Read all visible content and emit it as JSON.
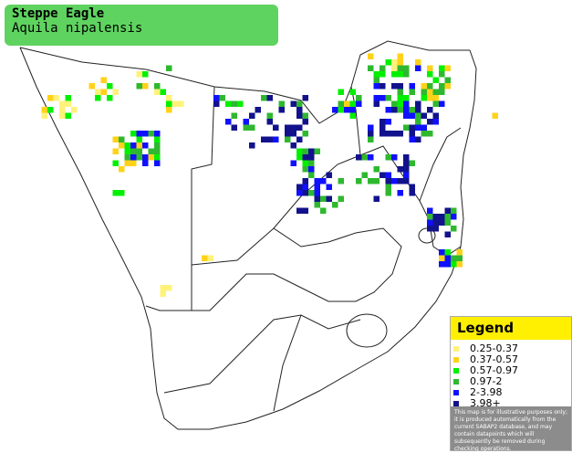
{
  "header": {
    "title": "Steppe Eagle",
    "subtitle": "Aquila nipalensis"
  },
  "legend": {
    "title": "Legend",
    "items": [
      {
        "label": "0.25-0.37",
        "color": "#fff27a"
      },
      {
        "label": "0.37-0.57",
        "color": "#ffd21a"
      },
      {
        "label": "0.57-0.97",
        "color": "#00f000"
      },
      {
        "label": "0.97-2",
        "color": "#2fb82f"
      },
      {
        "label": "2-3.98",
        "color": "#1010ff"
      },
      {
        "label": "3.98+",
        "color": "#12128c"
      }
    ],
    "note": "This map is for illustrative purposes only; it is produced automatically from the current SABAP2 database, and may contain datapoints which will subsequently be removed during checking operations."
  }
}
